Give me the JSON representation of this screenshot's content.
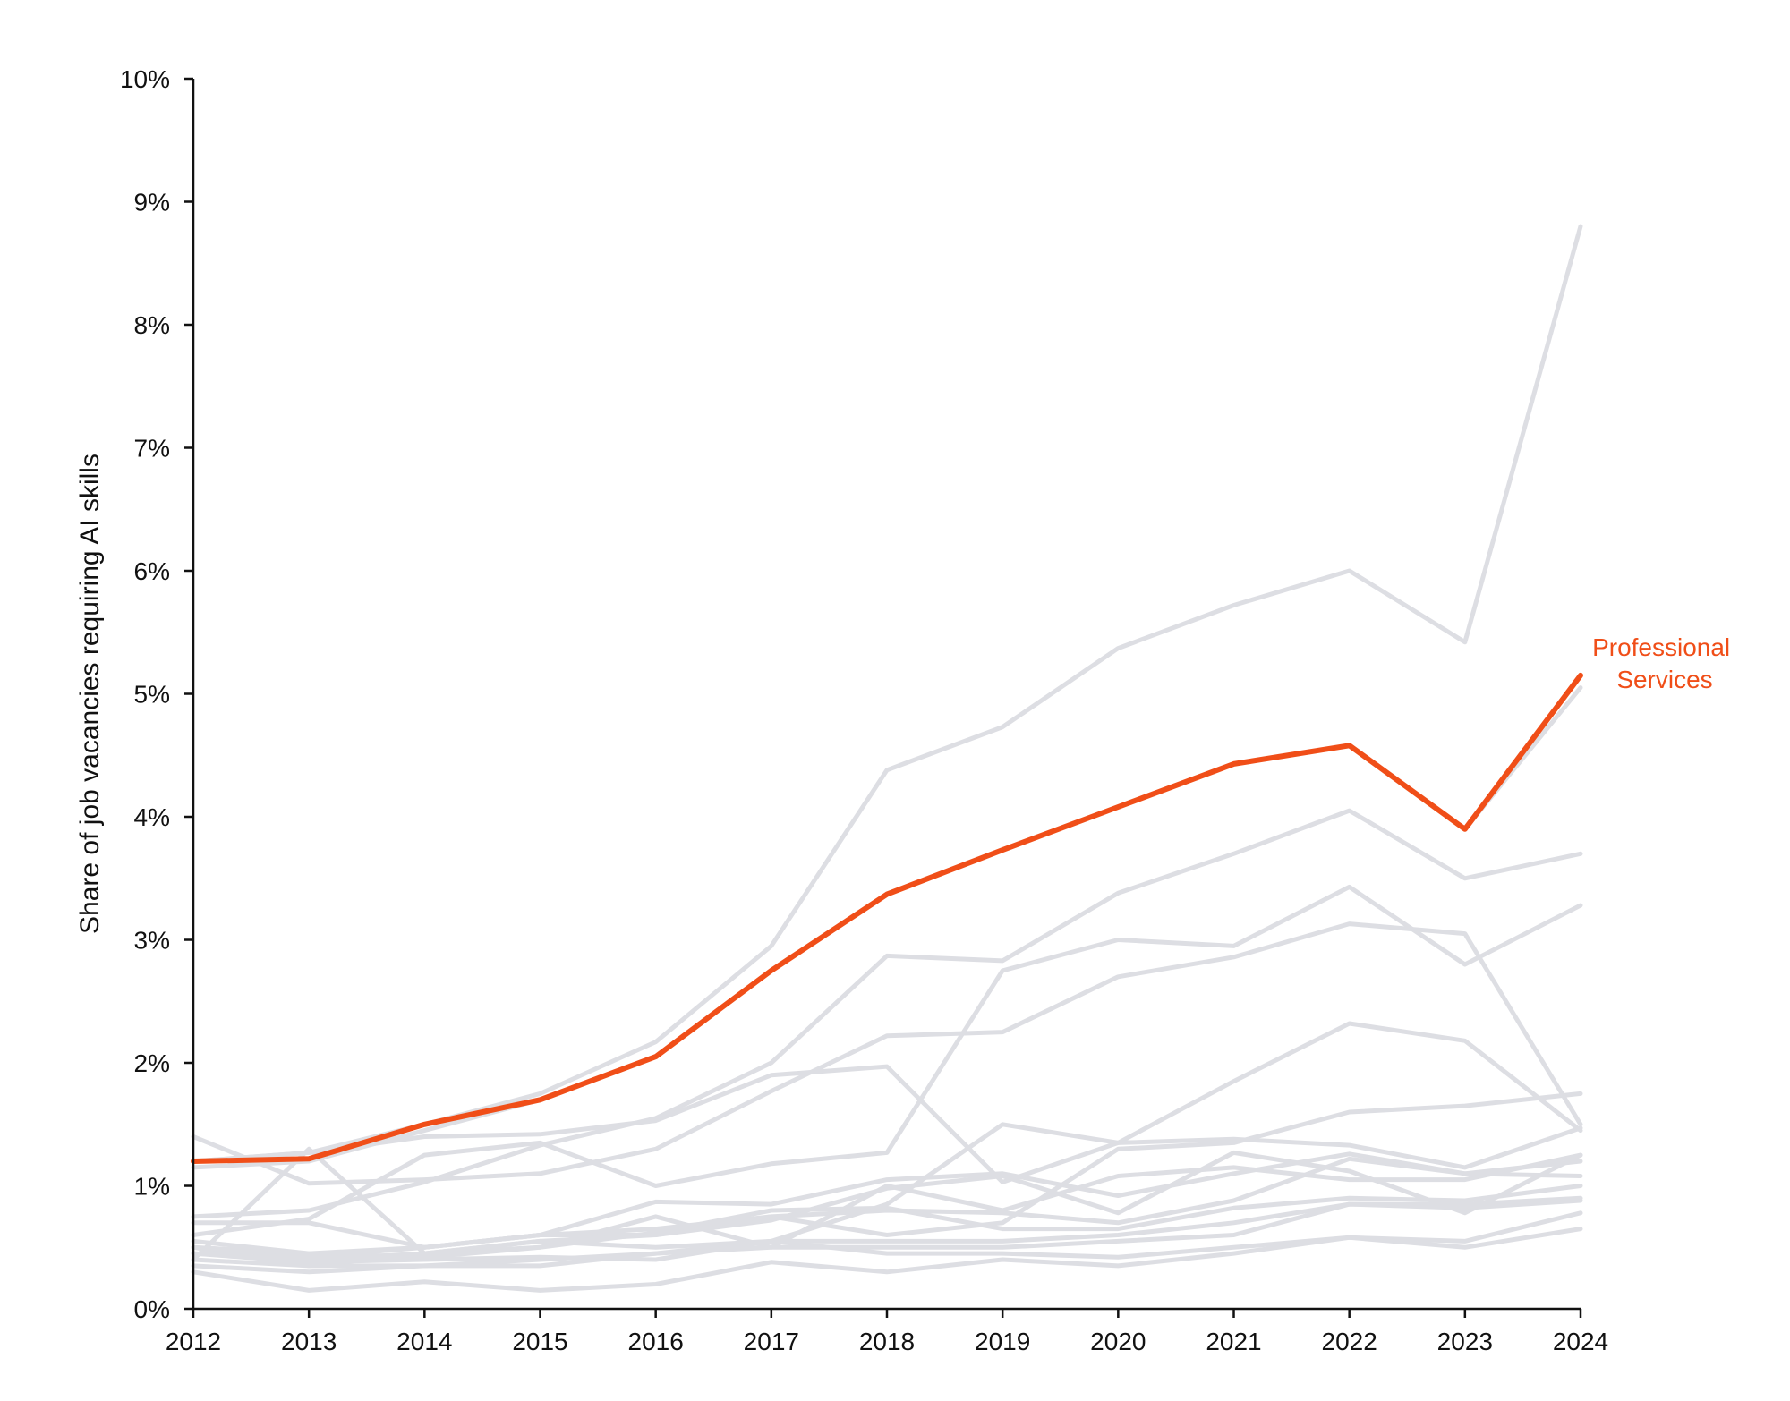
{
  "chart_data": {
    "type": "line",
    "title": "",
    "xlabel": "",
    "ylabel": "Share of job vacancies requiring AI skills",
    "x": [
      "2012",
      "2013",
      "2014",
      "2015",
      "2016",
      "2017",
      "2018",
      "2019",
      "2020",
      "2021",
      "2022",
      "2023",
      "2024"
    ],
    "ylim": [
      0,
      10
    ],
    "yticks": [
      "0%",
      "1%",
      "2%",
      "3%",
      "4%",
      "5%",
      "6%",
      "7%",
      "8%",
      "9%",
      "10%"
    ],
    "grid": false,
    "colors": {
      "highlight": "#F04E18",
      "background_series": "#DDDEE3",
      "axis": "#111111"
    },
    "highlight": {
      "name": "Professional Services",
      "label_lines": [
        "Professional",
        "Services"
      ],
      "values": [
        1.2,
        1.22,
        1.5,
        1.7,
        2.05,
        2.75,
        3.37,
        3.73,
        4.08,
        4.43,
        4.58,
        3.9,
        5.15
      ]
    },
    "series": [
      {
        "values": [
          1.2,
          1.27,
          1.5,
          1.75,
          2.17,
          2.95,
          4.38,
          4.73,
          5.37,
          5.72,
          6.0,
          5.42,
          8.8
        ]
      },
      {
        "values": [
          1.15,
          1.2,
          1.45,
          1.7,
          2.05,
          2.75,
          3.37,
          3.73,
          4.08,
          4.43,
          4.58,
          3.9,
          5.05
        ]
      },
      {
        "values": [
          0.75,
          0.8,
          1.03,
          1.33,
          1.55,
          2.0,
          2.87,
          2.83,
          3.38,
          3.7,
          4.05,
          3.5,
          3.7
        ]
      },
      {
        "values": [
          0.6,
          0.73,
          1.25,
          1.35,
          1.0,
          1.18,
          1.27,
          2.75,
          3.0,
          2.95,
          3.43,
          2.8,
          3.28
        ]
      },
      {
        "values": [
          1.4,
          1.02,
          1.05,
          1.1,
          1.3,
          1.77,
          2.22,
          2.25,
          2.7,
          2.86,
          3.13,
          3.05,
          1.5
        ]
      },
      {
        "values": [
          1.2,
          1.27,
          1.4,
          1.42,
          1.53,
          1.9,
          1.97,
          1.03,
          1.35,
          1.85,
          2.32,
          2.18,
          1.45
        ]
      },
      {
        "values": [
          0.7,
          0.7,
          0.5,
          0.6,
          0.6,
          0.75,
          0.6,
          0.7,
          1.3,
          1.35,
          1.6,
          1.65,
          1.75
        ]
      },
      {
        "values": [
          0.5,
          0.35,
          0.35,
          0.4,
          0.45,
          0.55,
          0.85,
          1.5,
          1.35,
          1.38,
          1.33,
          1.15,
          1.47
        ]
      },
      {
        "values": [
          0.4,
          1.3,
          0.45,
          0.55,
          0.6,
          0.72,
          0.98,
          1.08,
          0.78,
          1.27,
          1.12,
          0.78,
          1.25
        ]
      },
      {
        "values": [
          0.5,
          0.42,
          0.5,
          0.6,
          0.87,
          0.85,
          1.05,
          1.1,
          0.92,
          1.1,
          1.26,
          1.1,
          1.2
        ]
      },
      {
        "values": [
          0.45,
          0.4,
          0.45,
          0.5,
          0.75,
          0.5,
          1.0,
          0.8,
          1.08,
          1.15,
          1.05,
          1.05,
          1.25
        ]
      },
      {
        "values": [
          0.55,
          0.45,
          0.5,
          0.6,
          0.65,
          0.75,
          0.8,
          0.78,
          0.7,
          0.88,
          1.22,
          1.1,
          1.08
        ]
      },
      {
        "values": [
          0.5,
          0.45,
          0.42,
          0.5,
          0.62,
          0.8,
          0.82,
          0.65,
          0.65,
          0.82,
          0.9,
          0.88,
          1.0
        ]
      },
      {
        "values": [
          0.4,
          0.35,
          0.45,
          0.55,
          0.5,
          0.55,
          0.55,
          0.55,
          0.6,
          0.7,
          0.85,
          0.85,
          0.9
        ]
      },
      {
        "values": [
          0.35,
          0.3,
          0.35,
          0.35,
          0.45,
          0.5,
          0.5,
          0.5,
          0.55,
          0.6,
          0.85,
          0.82,
          0.88
        ]
      },
      {
        "values": [
          0.45,
          0.38,
          0.4,
          0.42,
          0.4,
          0.55,
          0.45,
          0.45,
          0.42,
          0.5,
          0.58,
          0.55,
          0.78
        ]
      },
      {
        "values": [
          0.3,
          0.15,
          0.22,
          0.15,
          0.2,
          0.38,
          0.3,
          0.4,
          0.35,
          0.45,
          0.58,
          0.5,
          0.65
        ]
      }
    ]
  }
}
